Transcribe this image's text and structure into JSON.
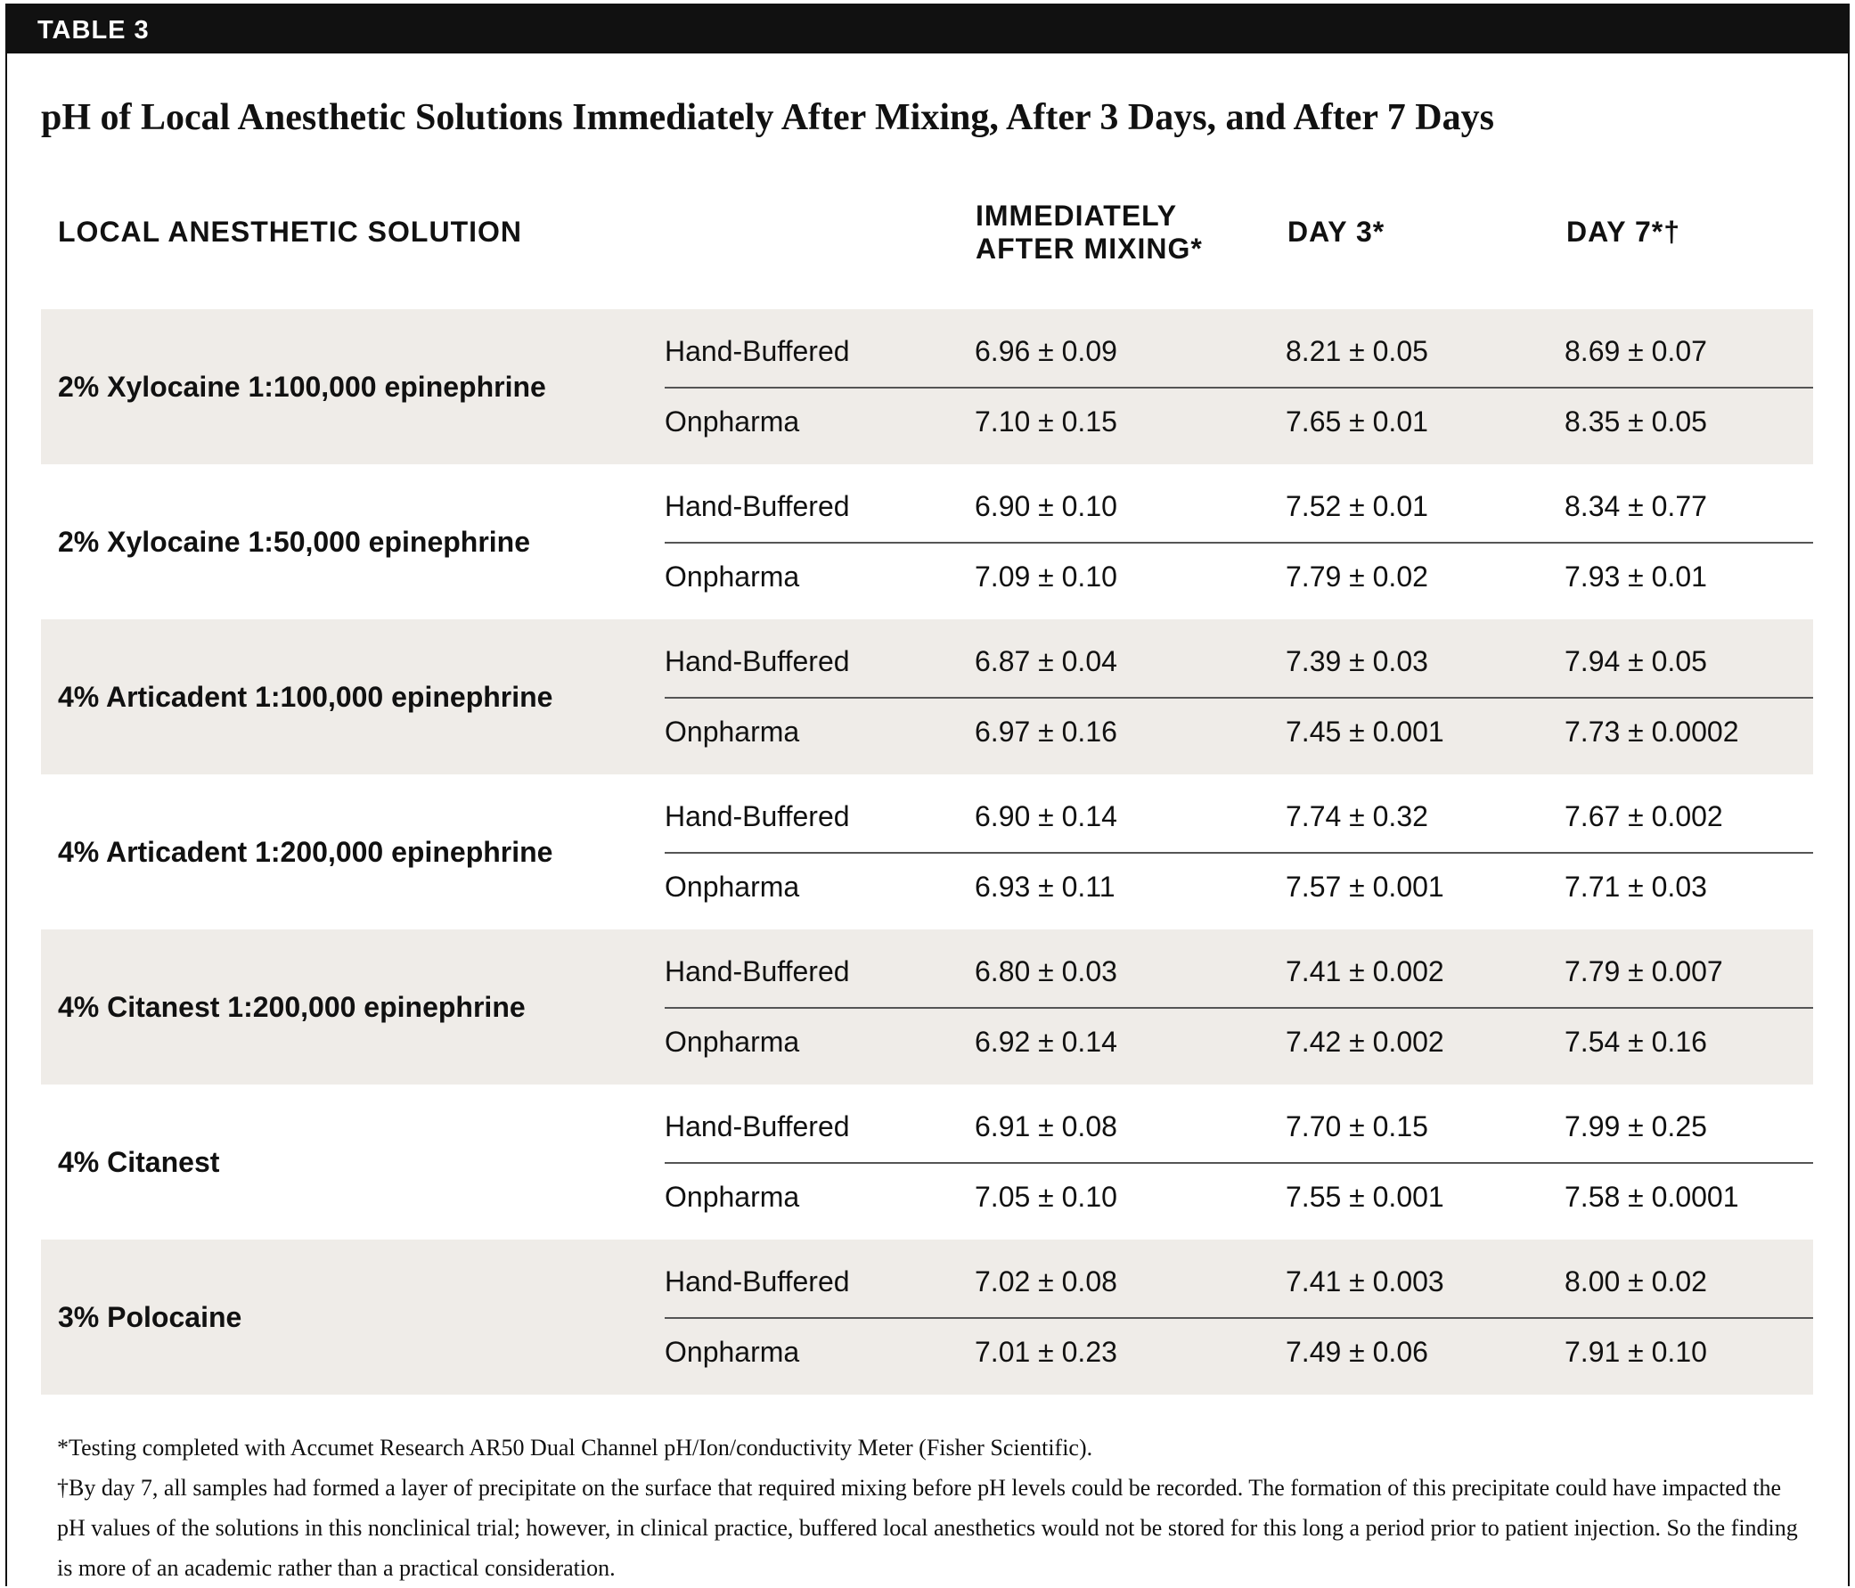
{
  "header": {
    "label": "TABLE 3"
  },
  "title": "pH of Local Anesthetic Solutions Immediately After Mixing, After 3 Days, and After 7 Days",
  "table": {
    "columns": [
      "LOCAL ANESTHETIC SOLUTION",
      "IMMEDIATELY AFTER MIXING*",
      "DAY 3*",
      "DAY 7*†"
    ],
    "groups": [
      {
        "solution": "2% Xylocaine 1:100,000 epinephrine",
        "rows": [
          [
            "Hand-Buffered",
            "6.96 ± 0.09",
            "8.21 ± 0.05",
            "8.69 ± 0.07"
          ],
          [
            "Onpharma",
            "7.10 ± 0.15",
            "7.65 ± 0.01",
            "8.35 ± 0.05"
          ]
        ]
      },
      {
        "solution": "2% Xylocaine 1:50,000 epinephrine",
        "rows": [
          [
            "Hand-Buffered",
            "6.90 ± 0.10",
            "7.52 ± 0.01",
            "8.34 ± 0.77"
          ],
          [
            "Onpharma",
            "7.09 ± 0.10",
            "7.79 ± 0.02",
            "7.93 ± 0.01"
          ]
        ]
      },
      {
        "solution": "4% Articadent 1:100,000 epinephrine",
        "rows": [
          [
            "Hand-Buffered",
            "6.87 ± 0.04",
            "7.39 ± 0.03",
            "7.94 ± 0.05"
          ],
          [
            "Onpharma",
            "6.97 ± 0.16",
            "7.45 ± 0.001",
            "7.73 ± 0.0002"
          ]
        ]
      },
      {
        "solution": "4% Articadent 1:200,000 epinephrine",
        "rows": [
          [
            "Hand-Buffered",
            "6.90 ± 0.14",
            "7.74 ± 0.32",
            "7.67 ± 0.002"
          ],
          [
            "Onpharma",
            "6.93 ± 0.11",
            "7.57 ± 0.001",
            "7.71 ± 0.03"
          ]
        ]
      },
      {
        "solution": "4% Citanest 1:200,000 epinephrine",
        "rows": [
          [
            "Hand-Buffered",
            "6.80 ± 0.03",
            "7.41 ± 0.002",
            "7.79 ± 0.007"
          ],
          [
            "Onpharma",
            "6.92 ± 0.14",
            "7.42 ± 0.002",
            "7.54 ± 0.16"
          ]
        ]
      },
      {
        "solution": "4% Citanest",
        "rows": [
          [
            "Hand-Buffered",
            "6.91 ± 0.08",
            "7.70 ± 0.15",
            "7.99 ± 0.25"
          ],
          [
            "Onpharma",
            "7.05 ± 0.10",
            "7.55 ± 0.001",
            "7.58 ± 0.0001"
          ]
        ]
      },
      {
        "solution": "3% Polocaine",
        "rows": [
          [
            "Hand-Buffered",
            "7.02 ± 0.08",
            "7.41 ± 0.003",
            "8.00 ± 0.02"
          ],
          [
            "Onpharma",
            "7.01 ± 0.23",
            "7.49 ± 0.06",
            "7.91 ± 0.10"
          ]
        ]
      }
    ]
  },
  "footnotes": [
    "*Testing completed with Accumet Research AR50 Dual Channel pH/Ion/conductivity Meter (Fisher Scientific).",
    "†By day 7, all samples had formed a layer of precipitate on the surface that required mixing before pH levels could be recorded. The formation of this precipitate could have impacted the pH values of the solutions in this nonclinical trial; however, in clinical practice, buffered local anesthetics would not be stored for this long a period prior to patient injection. So the finding is more of an academic rather than a practical consideration."
  ]
}
